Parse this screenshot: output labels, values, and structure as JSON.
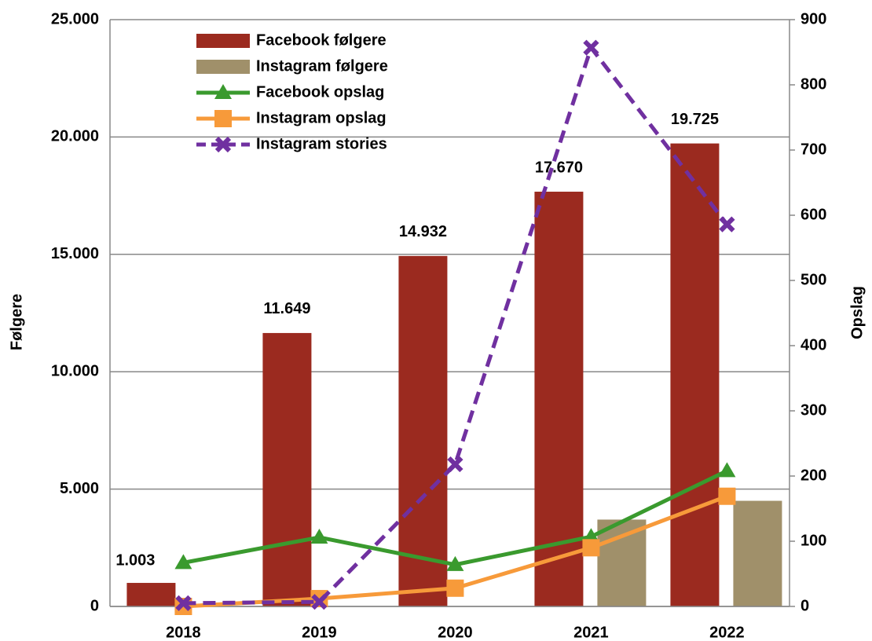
{
  "chart_data": {
    "type": "bar_line",
    "y_label": "Følgere",
    "y2_label": "Opslag",
    "categories": [
      "2018",
      "2019",
      "2020",
      "2021",
      "2022"
    ],
    "ylim": [
      0,
      25000
    ],
    "yticks": [
      0,
      {
        "value": 5000,
        "label": "5.000"
      },
      {
        "value": 10000,
        "label": "10.000"
      },
      {
        "value": 15000,
        "label": "15.000"
      },
      {
        "value": 20000,
        "label": "20.000"
      },
      {
        "value": 25000,
        "label": "25.000"
      }
    ],
    "y2lim": [
      0,
      900
    ],
    "y2ticks": [
      0,
      100,
      200,
      300,
      400,
      500,
      600,
      700,
      800,
      900
    ],
    "grid": true,
    "legend": "top-left",
    "series": [
      {
        "name": "Facebook følgere",
        "type": "bar",
        "color": "#9b2a1f",
        "values": [
          1003,
          11649,
          14932,
          17670,
          19725
        ],
        "value_labels": [
          "1.003",
          "11.649",
          "14.932",
          "17.670",
          "19.725"
        ]
      },
      {
        "name": "Instagram følgere",
        "type": "bar",
        "color": "#a0906a",
        "values": [
          null,
          null,
          null,
          3700,
          4500
        ]
      },
      {
        "name": "Facebook opslag",
        "type": "line",
        "axis": "y2",
        "color": "#3a9a2e",
        "marker": "triangle",
        "values": [
          67,
          106,
          64,
          107,
          208
        ]
      },
      {
        "name": "Instagram opslag",
        "type": "line",
        "axis": "y2",
        "color": "#f79a3a",
        "marker": "square",
        "values": [
          0,
          12,
          28,
          90,
          169
        ]
      },
      {
        "name": "Instagram stories",
        "type": "line",
        "axis": "y2",
        "color": "#7030a0",
        "marker": "x",
        "dashed": true,
        "values": [
          5,
          7,
          218,
          857,
          586
        ]
      }
    ]
  }
}
